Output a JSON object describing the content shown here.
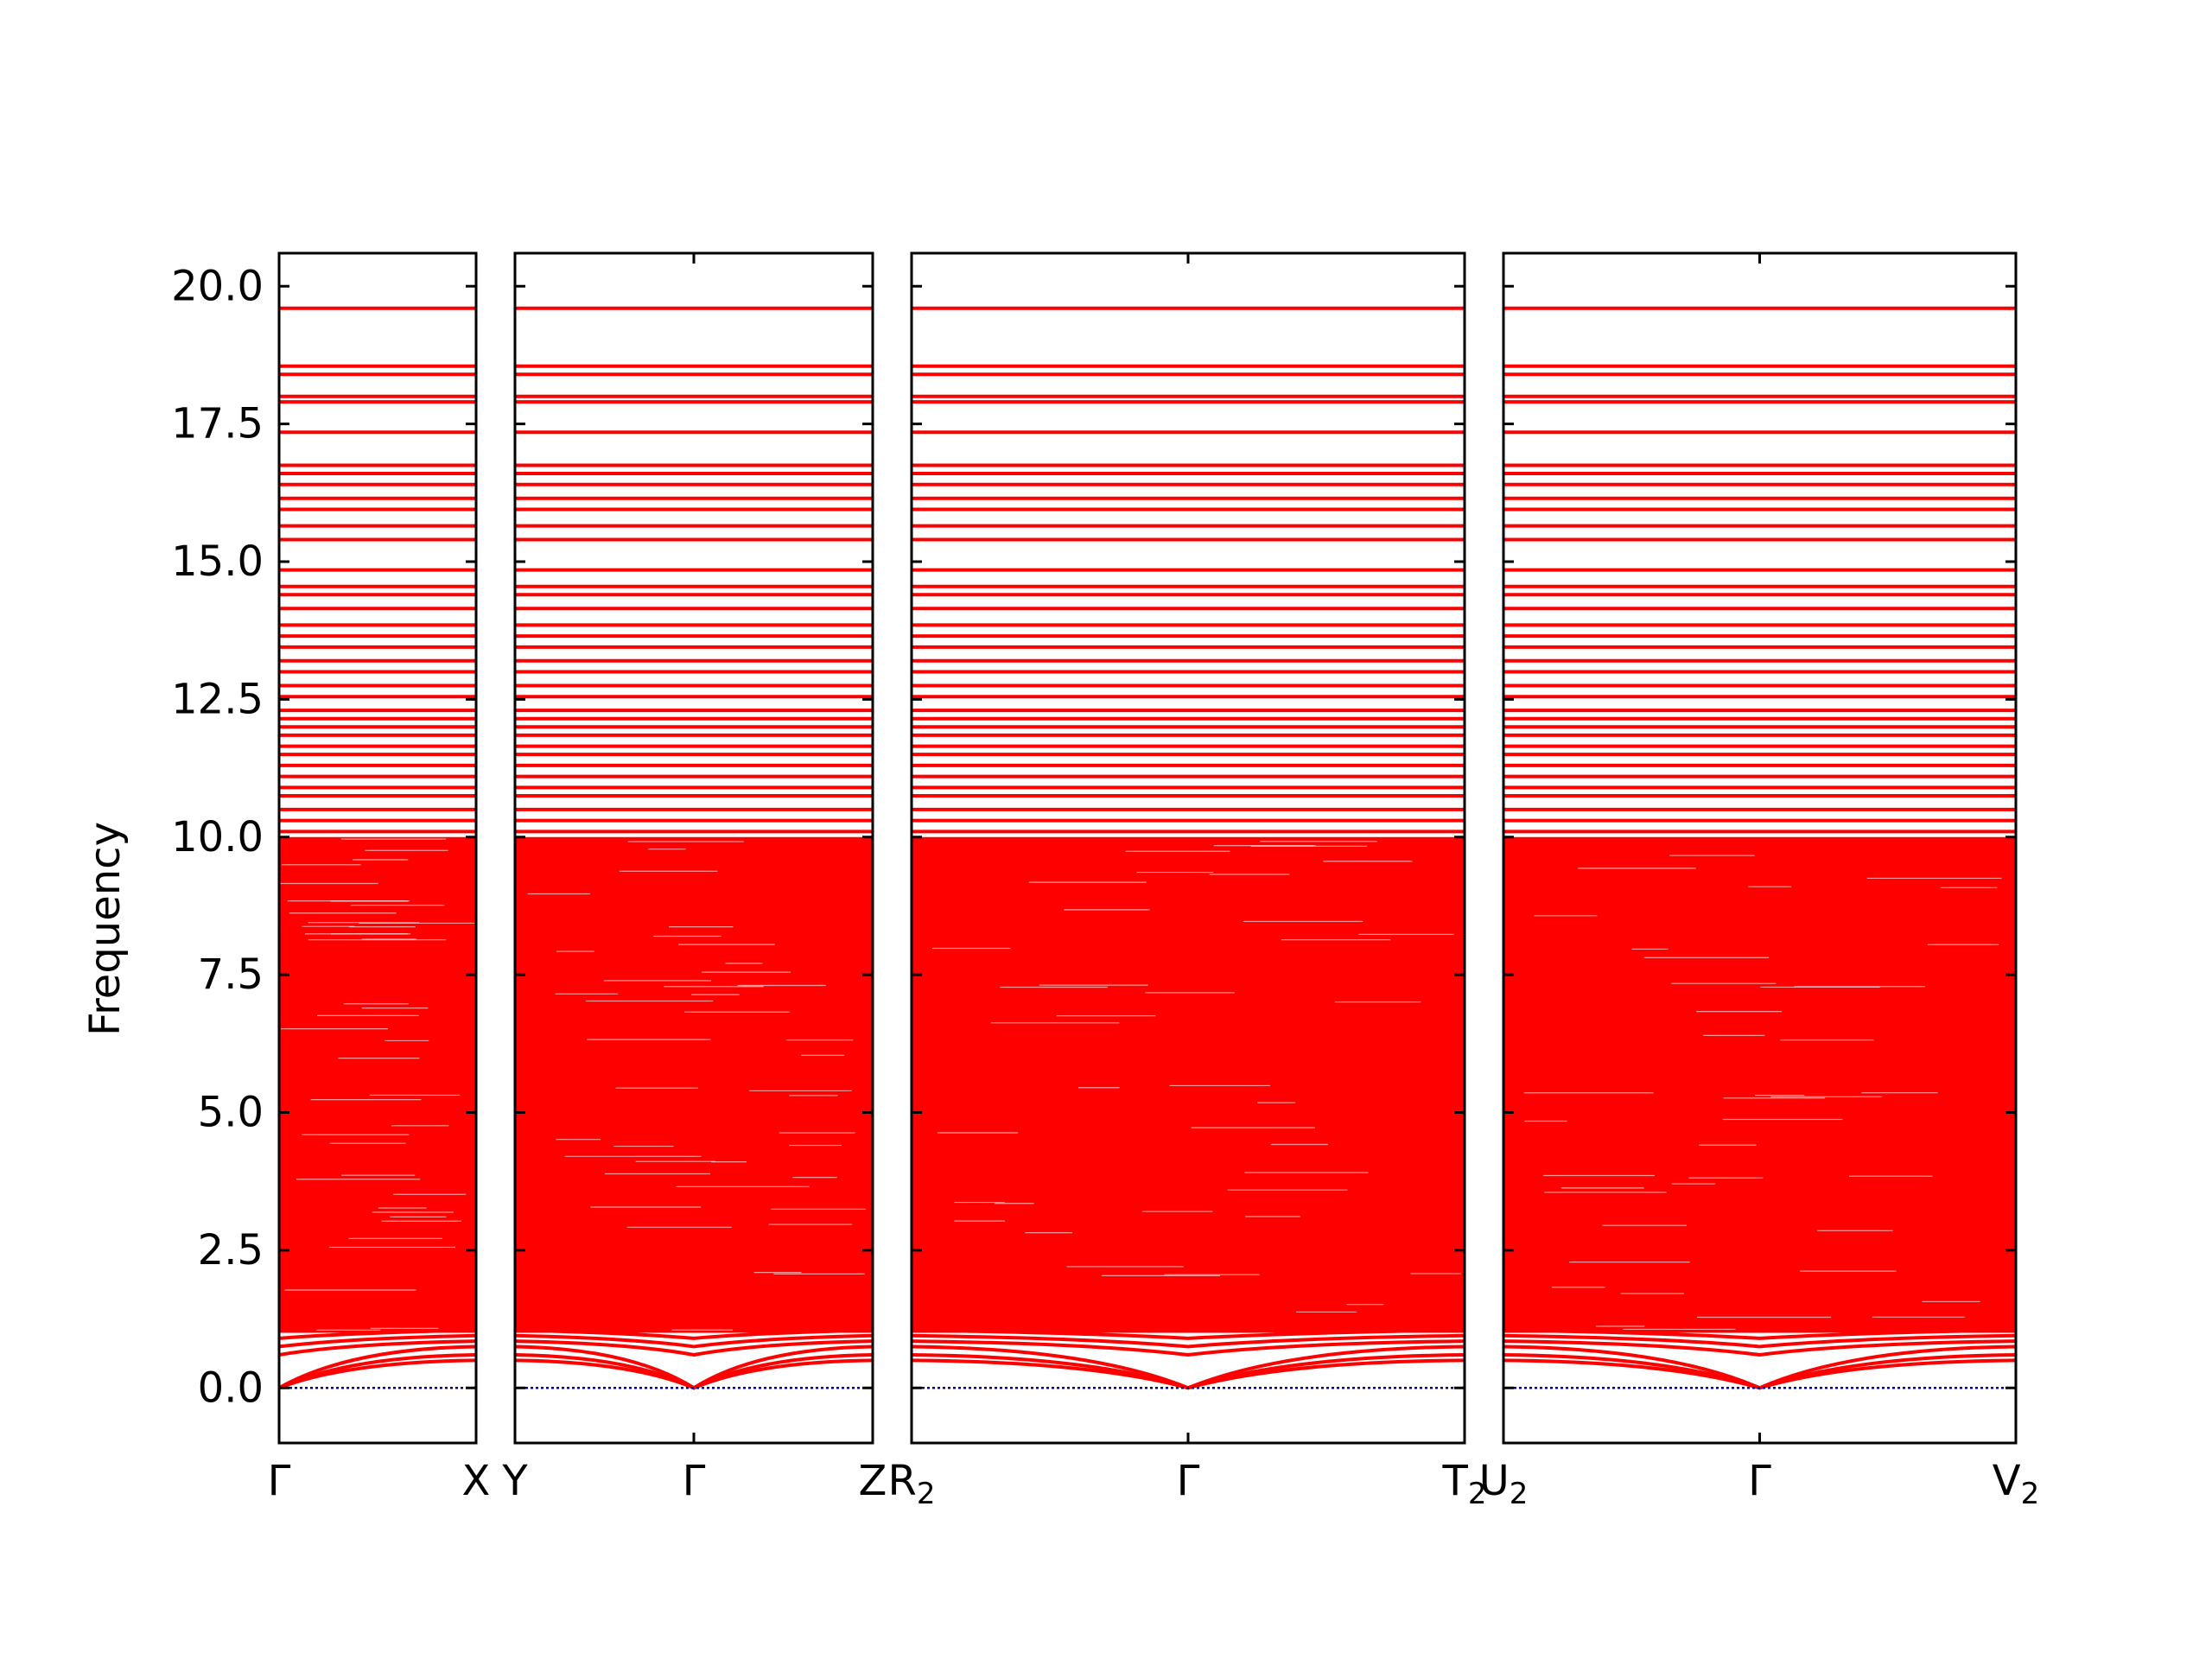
{
  "chart_data": {
    "type": "line",
    "title": "",
    "xlabel": "",
    "ylabel": "Frequency",
    "ylim": [
      -1,
      20.6
    ],
    "yticks": [
      "0.0",
      "2.5",
      "5.0",
      "7.5",
      "10.0",
      "12.5",
      "15.0",
      "17.5",
      "20.0"
    ],
    "grid": false,
    "legend": "none",
    "colors": {
      "bands": "#ff0000",
      "zero_line": "#00008b",
      "frame": "#000000"
    },
    "panels": [
      {
        "path": [
          "Γ",
          "X"
        ],
        "labels": [
          {
            "text": "Γ",
            "sub": ""
          },
          {
            "text": "X",
            "sub": ""
          }
        ],
        "gamma_at": 0
      },
      {
        "path": [
          "Y",
          "Γ",
          "Z"
        ],
        "labels": [
          {
            "text": "Y",
            "sub": ""
          },
          {
            "text": "Γ",
            "sub": ""
          },
          {
            "text": "Z",
            "sub": ""
          }
        ],
        "gamma_at": 0.5
      },
      {
        "path": [
          "R2",
          "Γ",
          "T2"
        ],
        "labels": [
          {
            "text": "R",
            "sub": "2"
          },
          {
            "text": "Γ",
            "sub": ""
          },
          {
            "text": "T",
            "sub": "2"
          }
        ],
        "gamma_at": 0.5
      },
      {
        "path": [
          "U2",
          "Γ",
          "V2"
        ],
        "labels": [
          {
            "text": "U",
            "sub": "2"
          },
          {
            "text": "Γ",
            "sub": ""
          },
          {
            "text": "V",
            "sub": "2"
          }
        ],
        "gamma_at": 0.5
      }
    ],
    "optical_band_range": [
      1.0,
      10.0
    ],
    "flat_bands": [
      19.6,
      18.55,
      18.4,
      18.0,
      17.9,
      17.35,
      16.75,
      16.6,
      16.4,
      16.15,
      15.95,
      15.65,
      15.4,
      14.85,
      14.55,
      14.4,
      14.15,
      13.85,
      13.65,
      13.45,
      13.2,
      13.0,
      12.75,
      12.55,
      12.3,
      12.15,
      12.0,
      11.85,
      11.65,
      11.5,
      11.3,
      11.1,
      10.9,
      10.75,
      10.5,
      10.3,
      10.1
    ],
    "low_bands_gamma": [
      0.0,
      0.0,
      0.0,
      0.6,
      0.75,
      0.9
    ],
    "low_bands_edge": [
      0.5,
      0.6,
      0.75,
      0.85,
      0.95,
      1.05
    ],
    "zero_line": 0.0
  }
}
